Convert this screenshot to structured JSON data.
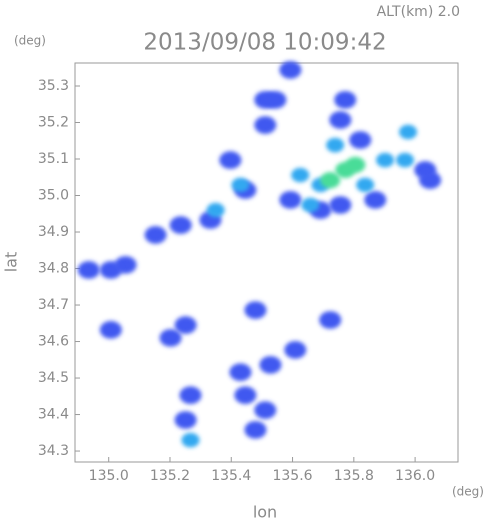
{
  "chart_data": {
    "type": "scatter",
    "title": "2013/09/08 10:09:42",
    "subtitle": "ALT(km) 2.0",
    "y_unit": "(deg)",
    "x_unit": "(deg)",
    "x_label": "lon",
    "y_label": "lat",
    "xlim": [
      134.89,
      136.14
    ],
    "ylim": [
      34.27,
      35.363
    ],
    "xticks": [
      {
        "value": 135,
        "label": "135.0"
      },
      135.2,
      135.4,
      135.6,
      135.8,
      {
        "value": 136,
        "label": "136.0"
      }
    ],
    "yticks": [
      34.3,
      34.4,
      34.5,
      34.6,
      34.7,
      34.8,
      34.9,
      {
        "value": 35,
        "label": "35.0"
      },
      35.1,
      35.2,
      35.3
    ],
    "series": [
      {
        "color": "#4058f0",
        "x": [
          135.593,
          136.033,
          136.049,
          135.772,
          135.756,
          135.821,
          135.87,
          135.756,
          135.691,
          135.511,
          135.511,
          135.544,
          135.593,
          135.397,
          135.446,
          135.332,
          135.235,
          135.153,
          135.055,
          135.007,
          134.935,
          135.007,
          135.202,
          135.251,
          135.479,
          135.609,
          135.723,
          135.528,
          135.446,
          135.511,
          135.479,
          135.251,
          135.267,
          135.43
        ],
        "y": [
          34.988,
          35.07,
          35.042,
          35.262,
          35.207,
          35.152,
          34.988,
          34.974,
          34.96,
          35.262,
          35.193,
          35.262,
          35.344,
          35.097,
          35.015,
          34.933,
          34.919,
          34.892,
          34.81,
          34.796,
          34.796,
          34.632,
          34.61,
          34.645,
          34.686,
          34.577,
          34.659,
          34.536,
          34.453,
          34.412,
          34.358,
          34.385,
          34.453,
          34.516
        ]
      },
      {
        "color": "#30a8f0",
        "x": [
          135.691,
          135.625,
          135.658,
          135.837,
          135.902,
          135.967,
          135.739,
          135.977,
          135.43,
          135.349,
          135.267
        ],
        "y": [
          35.029,
          35.056,
          34.974,
          35.029,
          35.097,
          35.097,
          35.138,
          35.174,
          35.029,
          34.96,
          34.33
        ]
      },
      {
        "color": "#48dc98",
        "x": [
          135.723,
          135.772,
          135.805
        ],
        "y": [
          35.042,
          35.07,
          35.084
        ]
      }
    ]
  }
}
